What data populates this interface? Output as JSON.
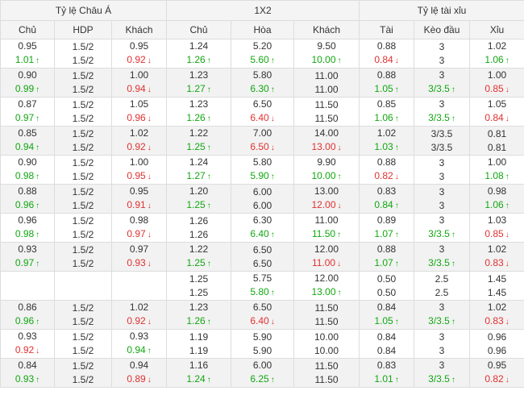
{
  "groups": [
    {
      "label": "Tỷ lệ Châu Á",
      "span": 3
    },
    {
      "label": "1X2",
      "span": 3
    },
    {
      "label": "Tỷ lệ tài xỉu",
      "span": 3
    }
  ],
  "columns": [
    "Chủ",
    "HDP",
    "Khách",
    "Chủ",
    "Hòa",
    "Khách",
    "Tài",
    "Kèo đầu",
    "Xỉu"
  ],
  "colors": {
    "up": "#11a711",
    "down": "#e23030",
    "alt_row": "#f2f2f2",
    "border": "#dddddd"
  },
  "rows": [
    {
      "cells": [
        [
          "0.95",
          "1.01 up"
        ],
        [
          "1.5/2",
          "1.5/2"
        ],
        [
          "0.95",
          "0.92 down"
        ],
        [
          "1.24",
          "1.26 up"
        ],
        [
          "5.20",
          "5.60 up"
        ],
        [
          "9.50",
          "10.00 up"
        ],
        [
          "0.88",
          "0.84 down"
        ],
        [
          "3",
          "3"
        ],
        [
          "1.02",
          "1.06 up"
        ]
      ]
    },
    {
      "cells": [
        [
          "0.90",
          "0.99 up"
        ],
        [
          "1.5/2",
          "1.5/2"
        ],
        [
          "1.00",
          "0.94 down"
        ],
        [
          "1.23",
          "1.27 up"
        ],
        [
          "5.80",
          "6.30 up"
        ],
        [
          "11.00",
          "11.00"
        ],
        [
          "0.88",
          "1.05 up"
        ],
        [
          "3",
          "3/3.5 up"
        ],
        [
          "1.00",
          "0.85 down"
        ]
      ]
    },
    {
      "cells": [
        [
          "0.87",
          "0.97 up"
        ],
        [
          "1.5/2",
          "1.5/2"
        ],
        [
          "1.05",
          "0.96 down"
        ],
        [
          "1.23",
          "1.26 up"
        ],
        [
          "6.50",
          "6.40 down"
        ],
        [
          "11.50",
          "11.50"
        ],
        [
          "0.85",
          "1.06 up"
        ],
        [
          "3",
          "3/3.5 up"
        ],
        [
          "1.05",
          "0.84 down"
        ]
      ]
    },
    {
      "cells": [
        [
          "0.85",
          "0.94 up"
        ],
        [
          "1.5/2",
          "1.5/2"
        ],
        [
          "1.02",
          "0.92 down"
        ],
        [
          "1.22",
          "1.25 up"
        ],
        [
          "7.00",
          "6.50 down"
        ],
        [
          "14.00",
          "13.00 down"
        ],
        [
          "1.02",
          "1.03 up"
        ],
        [
          "3/3.5",
          "3/3.5"
        ],
        [
          "0.81",
          "0.81"
        ]
      ]
    },
    {
      "cells": [
        [
          "0.90",
          "0.98 up"
        ],
        [
          "1.5/2",
          "1.5/2"
        ],
        [
          "1.00",
          "0.95 down"
        ],
        [
          "1.24",
          "1.27 up"
        ],
        [
          "5.80",
          "5.90 up"
        ],
        [
          "9.90",
          "10.00 up"
        ],
        [
          "0.88",
          "0.82 down"
        ],
        [
          "3",
          "3"
        ],
        [
          "1.00",
          "1.08 up"
        ]
      ]
    },
    {
      "cells": [
        [
          "0.88",
          "0.96 up"
        ],
        [
          "1.5/2",
          "1.5/2"
        ],
        [
          "0.95",
          "0.91 down"
        ],
        [
          "1.20",
          "1.25 up"
        ],
        [
          "6.00",
          "6.00"
        ],
        [
          "13.00",
          "12.00 down"
        ],
        [
          "0.83",
          "0.84 up"
        ],
        [
          "3",
          "3"
        ],
        [
          "0.98",
          "1.06 up"
        ]
      ]
    },
    {
      "cells": [
        [
          "0.96",
          "0.98 up"
        ],
        [
          "1.5/2",
          "1.5/2"
        ],
        [
          "0.98",
          "0.97 down"
        ],
        [
          "1.26",
          "1.26"
        ],
        [
          "6.30",
          "6.40 up"
        ],
        [
          "11.00",
          "11.50 up"
        ],
        [
          "0.89",
          "1.07 up"
        ],
        [
          "3",
          "3/3.5 up"
        ],
        [
          "1.03",
          "0.85 down"
        ]
      ]
    },
    {
      "cells": [
        [
          "0.93",
          "0.97 up"
        ],
        [
          "1.5/2",
          "1.5/2"
        ],
        [
          "0.97",
          "0.93 down"
        ],
        [
          "1.22",
          "1.25 up"
        ],
        [
          "6.50",
          "6.50"
        ],
        [
          "12.00",
          "11.00 down"
        ],
        [
          "0.88",
          "1.07 up"
        ],
        [
          "3",
          "3/3.5 up"
        ],
        [
          "1.02",
          "0.83 down"
        ]
      ]
    },
    {
      "cells": [
        [
          "",
          ""
        ],
        [
          "",
          ""
        ],
        [
          "",
          ""
        ],
        [
          "1.25",
          "1.25"
        ],
        [
          "5.75",
          "5.80 up"
        ],
        [
          "12.00",
          "13.00 up"
        ],
        [
          "0.50",
          "0.50"
        ],
        [
          "2.5",
          "2.5"
        ],
        [
          "1.45",
          "1.45"
        ]
      ]
    },
    {
      "cells": [
        [
          "0.86",
          "0.96 up"
        ],
        [
          "1.5/2",
          "1.5/2"
        ],
        [
          "1.02",
          "0.92 down"
        ],
        [
          "1.23",
          "1.26 up"
        ],
        [
          "6.50",
          "6.40 down"
        ],
        [
          "11.50",
          "11.50"
        ],
        [
          "0.84",
          "1.05 up"
        ],
        [
          "3",
          "3/3.5 up"
        ],
        [
          "1.02",
          "0.83 down"
        ]
      ]
    },
    {
      "cells": [
        [
          "0.93",
          "0.92 down"
        ],
        [
          "1.5/2",
          "1.5/2"
        ],
        [
          "0.93",
          "0.94 up"
        ],
        [
          "1.19",
          "1.19"
        ],
        [
          "5.90",
          "5.90"
        ],
        [
          "10.00",
          "10.00"
        ],
        [
          "0.84",
          "0.84"
        ],
        [
          "3",
          "3"
        ],
        [
          "0.96",
          "0.96"
        ]
      ]
    },
    {
      "cells": [
        [
          "0.84",
          "0.93 up"
        ],
        [
          "1.5/2",
          "1.5/2"
        ],
        [
          "0.94",
          "0.89 down"
        ],
        [
          "1.16",
          "1.24 up"
        ],
        [
          "6.00",
          "6.25 up"
        ],
        [
          "11.50",
          "11.50"
        ],
        [
          "0.83",
          "1.01 up"
        ],
        [
          "3",
          "3/3.5 up"
        ],
        [
          "0.95",
          "0.82 down"
        ]
      ]
    }
  ]
}
